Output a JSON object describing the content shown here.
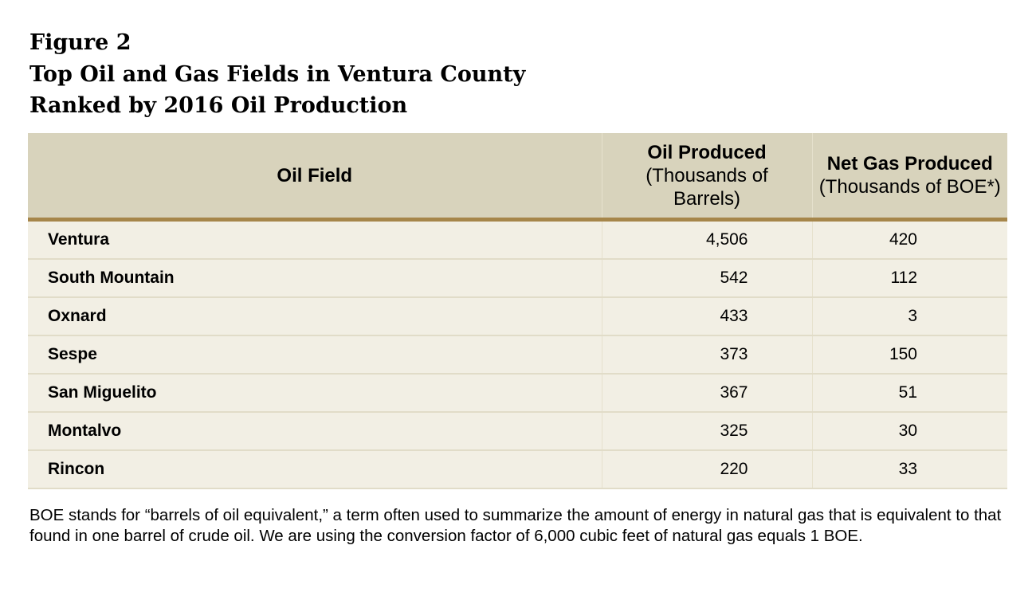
{
  "heading": {
    "line1": "Figure 2",
    "line2": "Top Oil and Gas Fields in Ventura County",
    "line3": "Ranked by 2016 Oil Production"
  },
  "table": {
    "headers": {
      "col1": "Oil Field",
      "col2_title": "Oil Produced",
      "col2_sub_line1": "(Thousands of",
      "col2_sub_line2": "Barrels)",
      "col3_title": "Net Gas Produced",
      "col3_sub": "(Thousands of BOE*)"
    },
    "rows": [
      {
        "field": "Ventura",
        "oil": "4,506",
        "gas": "420"
      },
      {
        "field": "South Mountain",
        "oil": "542",
        "gas": "112"
      },
      {
        "field": "Oxnard",
        "oil": "433",
        "gas": "3"
      },
      {
        "field": "Sespe",
        "oil": "373",
        "gas": "150"
      },
      {
        "field": "San Miguelito",
        "oil": "367",
        "gas": "51"
      },
      {
        "field": "Montalvo",
        "oil": "325",
        "gas": "30"
      },
      {
        "field": "Rincon",
        "oil": "220",
        "gas": "33"
      }
    ]
  },
  "footnote": "BOE stands for “barrels of oil equivalent,” a term often used to summarize the amount of energy in natural gas that is equivalent to that found in one barrel of crude oil. We are using the conversion factor of 6,000 cubic feet of natural gas equals 1 BOE.",
  "colors": {
    "header_bg": "#d8d3bc",
    "header_rule": "#a6864a",
    "row_bg": "#f2efe4"
  }
}
